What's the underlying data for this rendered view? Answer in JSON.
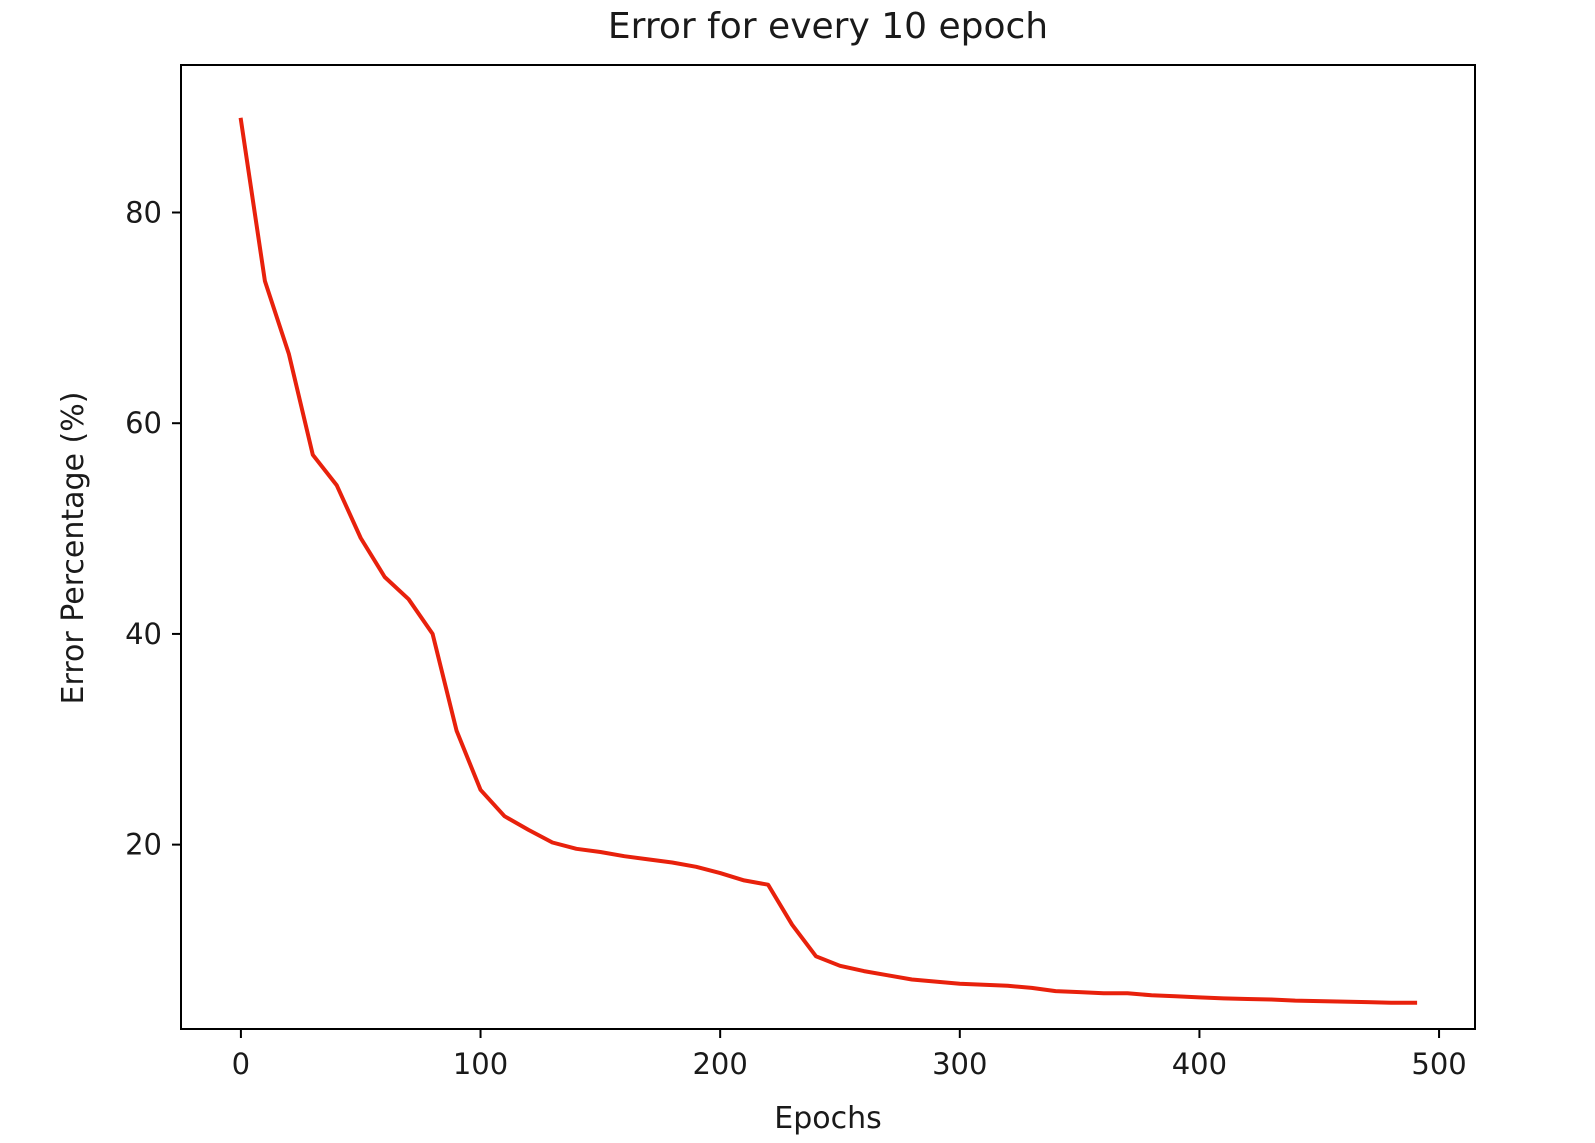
{
  "chart_data": {
    "type": "line",
    "title": "Error for every 10 epoch",
    "xlabel": "Epochs",
    "ylabel": "Error Percentage (%)",
    "xlim": [
      -25,
      515
    ],
    "ylim": [
      2.5,
      94
    ],
    "xticks": [
      0,
      100,
      200,
      300,
      400,
      500
    ],
    "yticks": [
      20,
      40,
      60,
      80
    ],
    "grid": false,
    "legend": "none",
    "series": [
      {
        "color": "#e8210c",
        "x": [
          0,
          10,
          20,
          30,
          40,
          50,
          60,
          70,
          80,
          90,
          100,
          110,
          120,
          130,
          140,
          150,
          160,
          170,
          180,
          190,
          200,
          210,
          220,
          230,
          240,
          250,
          260,
          270,
          280,
          290,
          300,
          310,
          320,
          330,
          340,
          350,
          360,
          370,
          380,
          390,
          400,
          410,
          420,
          430,
          440,
          450,
          460,
          470,
          480,
          490
        ],
        "y": [
          88.8,
          73.5,
          66.6,
          57.0,
          54.1,
          49.1,
          45.4,
          43.3,
          40.0,
          30.8,
          25.2,
          22.7,
          21.4,
          20.2,
          19.6,
          19.3,
          18.9,
          18.6,
          18.3,
          17.9,
          17.3,
          16.6,
          16.2,
          12.4,
          9.4,
          8.5,
          8.0,
          7.6,
          7.2,
          7.0,
          6.8,
          6.7,
          6.6,
          6.4,
          6.1,
          6.0,
          5.9,
          5.9,
          5.7,
          5.6,
          5.5,
          5.4,
          5.35,
          5.3,
          5.2,
          5.15,
          5.1,
          5.05,
          5.0,
          5.0
        ]
      }
    ]
  }
}
